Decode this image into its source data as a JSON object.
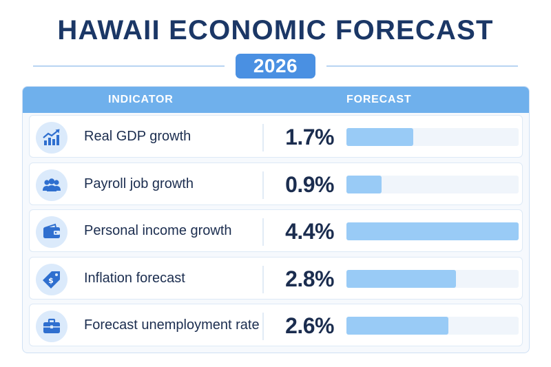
{
  "header": {
    "title": "HAWAII ECONOMIC FORECAST",
    "year": "2026"
  },
  "table": {
    "col_indicator": "INDICATOR",
    "col_forecast": "FORECAST"
  },
  "colors": {
    "title": "#1b3766",
    "accent": "#4a90e2",
    "header_bg": "#6fb0ec",
    "bar": "#99cbf6",
    "bar_track": "#f0f5fb",
    "icon": "#2f6fcf"
  },
  "chart_data": {
    "type": "bar",
    "orientation": "horizontal",
    "title": "HAWAII ECONOMIC FORECAST",
    "subtitle": "2026",
    "categories": [
      "Real GDP growth",
      "Payroll job growth",
      "Personal income growth",
      "Inflation forecast",
      "Forecast unemployment rate"
    ],
    "values": [
      1.7,
      0.9,
      4.4,
      2.8,
      2.6
    ],
    "value_labels": [
      "1.7%",
      "0.9%",
      "4.4%",
      "2.8%",
      "2.6%"
    ],
    "icons": [
      "chart-growth-icon",
      "people-icon",
      "wallet-icon",
      "price-tag-icon",
      "briefcase-icon"
    ],
    "xlim": [
      0,
      4.4
    ],
    "grid": false,
    "legend": "none"
  }
}
